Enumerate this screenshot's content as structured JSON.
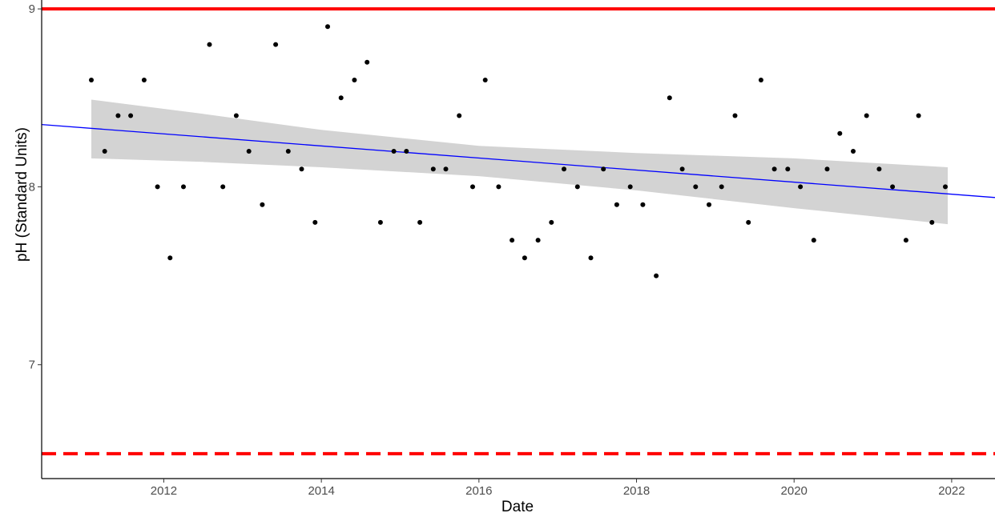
{
  "chart_data": {
    "type": "scatter",
    "xlabel": "Date",
    "ylabel": "pH (Standard Units)",
    "xlim": [
      2010.45,
      2022.55
    ],
    "ylim": [
      6.36,
      9.05
    ],
    "x_ticks": [
      2012,
      2014,
      2016,
      2018,
      2020,
      2022
    ],
    "x_tick_labels": [
      "2012",
      "2014",
      "2016",
      "2018",
      "2020",
      "2022"
    ],
    "y_ticks": [
      7,
      8,
      9
    ],
    "y_tick_labels": [
      "7",
      "8",
      "9"
    ],
    "grid": false,
    "reference_lines": [
      {
        "y": 9.0,
        "style": "solid",
        "color": "#ff0000"
      },
      {
        "y": 6.5,
        "style": "dashed",
        "color": "#ff0000"
      }
    ],
    "trend": {
      "x": [
        2010.45,
        2022.55
      ],
      "y": [
        8.35,
        7.94
      ],
      "color": "#0000ff",
      "confidence_band": {
        "x": [
          2011.08,
          2012.5,
          2014.0,
          2016.0,
          2018.0,
          2020.0,
          2021.95
        ],
        "upper": [
          8.49,
          8.41,
          8.32,
          8.23,
          8.19,
          8.16,
          8.11
        ],
        "lower": [
          8.16,
          8.14,
          8.11,
          8.06,
          7.98,
          7.88,
          7.79
        ],
        "color": "#d3d3d3"
      }
    },
    "series": [
      {
        "type": "points",
        "color": "#000000",
        "x": [
          2011.08,
          2011.25,
          2011.42,
          2011.58,
          2011.75,
          2011.92,
          2012.08,
          2012.25,
          2012.58,
          2012.75,
          2012.92,
          2013.08,
          2013.25,
          2013.42,
          2013.58,
          2013.75,
          2013.92,
          2014.08,
          2014.25,
          2014.42,
          2014.58,
          2014.75,
          2014.92,
          2015.08,
          2015.25,
          2015.42,
          2015.58,
          2015.75,
          2015.92,
          2016.08,
          2016.25,
          2016.42,
          2016.58,
          2016.75,
          2016.92,
          2017.08,
          2017.25,
          2017.42,
          2017.58,
          2017.75,
          2017.92,
          2018.08,
          2018.25,
          2018.42,
          2018.58,
          2018.75,
          2018.92,
          2019.08,
          2019.25,
          2019.42,
          2019.58,
          2019.75,
          2019.92,
          2020.08,
          2020.25,
          2020.42,
          2020.58,
          2020.75,
          2020.92,
          2021.08,
          2021.25,
          2021.42,
          2021.58,
          2021.75,
          2021.92
        ],
        "y": [
          8.6,
          8.2,
          8.4,
          8.4,
          8.6,
          8.0,
          7.6,
          8.0,
          8.8,
          8.0,
          8.4,
          8.2,
          7.9,
          8.8,
          8.2,
          8.1,
          7.8,
          8.9,
          8.5,
          8.6,
          8.7,
          7.8,
          8.2,
          8.2,
          7.8,
          8.1,
          8.1,
          8.4,
          8.0,
          8.6,
          8.0,
          7.7,
          7.6,
          7.7,
          7.8,
          8.1,
          8.0,
          7.6,
          8.1,
          7.9,
          8.0,
          7.9,
          7.5,
          8.5,
          8.1,
          8.0,
          7.9,
          8.0,
          8.4,
          7.8,
          8.6,
          8.1,
          8.1,
          8.0,
          7.7,
          8.1,
          8.3,
          8.2,
          8.4,
          8.1,
          8.0,
          7.7,
          8.4,
          7.8,
          8.0
        ]
      }
    ]
  }
}
